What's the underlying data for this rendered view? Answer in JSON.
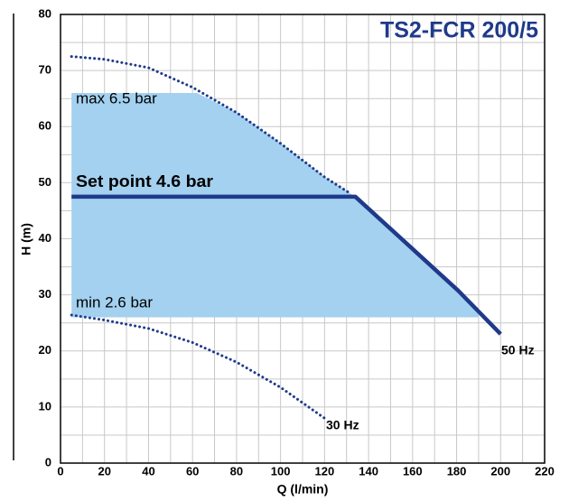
{
  "chart_data": {
    "type": "line",
    "title": "TS2-FCR 200/5",
    "x_label": "Q (l/min)",
    "y_label": "H (m)",
    "xlim": [
      0,
      220
    ],
    "ylim": [
      0,
      80
    ],
    "xticks": [
      0,
      20,
      40,
      60,
      80,
      100,
      120,
      140,
      160,
      180,
      200,
      220
    ],
    "yticks": [
      0,
      10,
      20,
      30,
      40,
      50,
      60,
      70,
      80
    ],
    "xgrid_minor": [
      10,
      30,
      50,
      70,
      90,
      110,
      130,
      150,
      170,
      190,
      210
    ],
    "ygrid_minor": [
      5,
      15,
      25,
      35,
      45,
      55,
      65,
      75
    ],
    "grid": true,
    "area": {
      "color": "#a3d1ef",
      "base": 26,
      "x": [
        5,
        62,
        80,
        100,
        120,
        134,
        160,
        180,
        190
      ],
      "values": [
        66,
        66,
        62.5,
        57,
        51,
        47.5,
        38,
        30.8,
        26.5
      ]
    },
    "series": [
      {
        "color": "#1f3a8a",
        "style": "dotted",
        "x": [
          5,
          20,
          40,
          60,
          80,
          100,
          120,
          132
        ],
        "values": [
          72.5,
          72,
          70.5,
          67,
          62.5,
          57,
          51,
          48
        ]
      },
      {
        "color": "#1f3a8a",
        "style": "solid",
        "x": [
          5,
          134,
          180.6,
          200
        ],
        "values": [
          47.5,
          47.5,
          30.8,
          23
        ]
      },
      {
        "color": "#1f3a8a",
        "style": "dotted",
        "x": [
          5,
          20,
          40,
          60,
          80,
          100,
          120
        ],
        "values": [
          26.4,
          25.5,
          24,
          21.5,
          18,
          13.5,
          8
        ]
      }
    ],
    "annotations": [
      "max 6.5 bar",
      "Set point 4.6 bar",
      "min 2.6 bar",
      "50 Hz",
      "30 Hz"
    ]
  }
}
